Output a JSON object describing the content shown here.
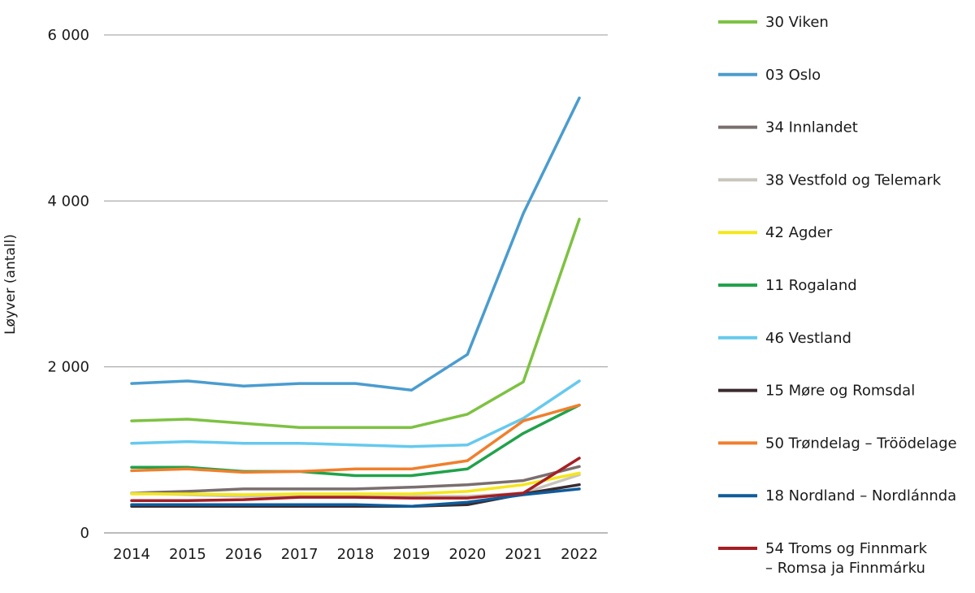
{
  "chart_data": {
    "type": "line",
    "title": "",
    "xlabel": "",
    "ylabel": "Løyver (antall)",
    "x": [
      "2014",
      "2015",
      "2016",
      "2017",
      "2018",
      "2019",
      "2020",
      "2021",
      "2022"
    ],
    "ylim": [
      0,
      6000
    ],
    "yticks": [
      0,
      2000,
      4000,
      6000
    ],
    "ytick_labels": [
      "0",
      "2 000",
      "4 000",
      "6 000"
    ],
    "grid": "horizontal",
    "legend_position": "right",
    "series": [
      {
        "name": "30 Viken",
        "color": "#7dc242",
        "values": [
          1350,
          1370,
          1320,
          1270,
          1270,
          1270,
          1430,
          1820,
          3780
        ]
      },
      {
        "name": "03 Oslo",
        "color": "#4a9ccf",
        "values": [
          1800,
          1830,
          1770,
          1800,
          1800,
          1720,
          2150,
          3850,
          5240
        ]
      },
      {
        "name": "34 Innlandet",
        "color": "#7a6e6e",
        "values": [
          480,
          500,
          530,
          530,
          530,
          550,
          580,
          630,
          800
        ]
      },
      {
        "name": "38 Vestfold og Telemark",
        "color": "#c9c5bd",
        "values": [
          480,
          460,
          440,
          450,
          450,
          440,
          440,
          480,
          700
        ]
      },
      {
        "name": "42 Agder",
        "color": "#f5e61c",
        "values": [
          470,
          470,
          460,
          470,
          470,
          470,
          500,
          580,
          720
        ]
      },
      {
        "name": "11 Rogaland",
        "color": "#21a24b",
        "values": [
          790,
          790,
          740,
          740,
          690,
          690,
          770,
          1200,
          1540
        ]
      },
      {
        "name": "46 Vestland",
        "color": "#66c9ee",
        "values": [
          1080,
          1100,
          1080,
          1080,
          1060,
          1040,
          1060,
          1380,
          1830
        ]
      },
      {
        "name": "15 Møre og Romsdal",
        "color": "#3b2a2e",
        "values": [
          320,
          320,
          320,
          320,
          320,
          320,
          340,
          470,
          580
        ]
      },
      {
        "name": "50 Trøndelag – Tröödelage",
        "color": "#f07f2d",
        "values": [
          750,
          770,
          730,
          740,
          770,
          770,
          870,
          1350,
          1540
        ]
      },
      {
        "name": "18 Nordland – Nordlánnda",
        "color": "#0e5c9b",
        "values": [
          340,
          340,
          340,
          340,
          340,
          320,
          370,
          460,
          530
        ]
      },
      {
        "name": "54 Troms og Finnmark – Romsa ja Finnmárku",
        "color": "#a51f24",
        "values": [
          390,
          390,
          400,
          430,
          430,
          420,
          420,
          480,
          900
        ]
      }
    ],
    "legend_lines": [
      [
        "30 Viken"
      ],
      [
        "03 Oslo"
      ],
      [
        "34 Innlandet"
      ],
      [
        "38 Vestfold og Telemark"
      ],
      [
        "42 Agder"
      ],
      [
        "11 Rogaland"
      ],
      [
        "46 Vestland"
      ],
      [
        "15 Møre og Romsdal"
      ],
      [
        "50 Trøndelag – Tröödelage"
      ],
      [
        "18 Nordland – Nordlánnda"
      ],
      [
        "54 Troms og Finnmark",
        "– Romsa ja Finnmárku"
      ]
    ]
  }
}
